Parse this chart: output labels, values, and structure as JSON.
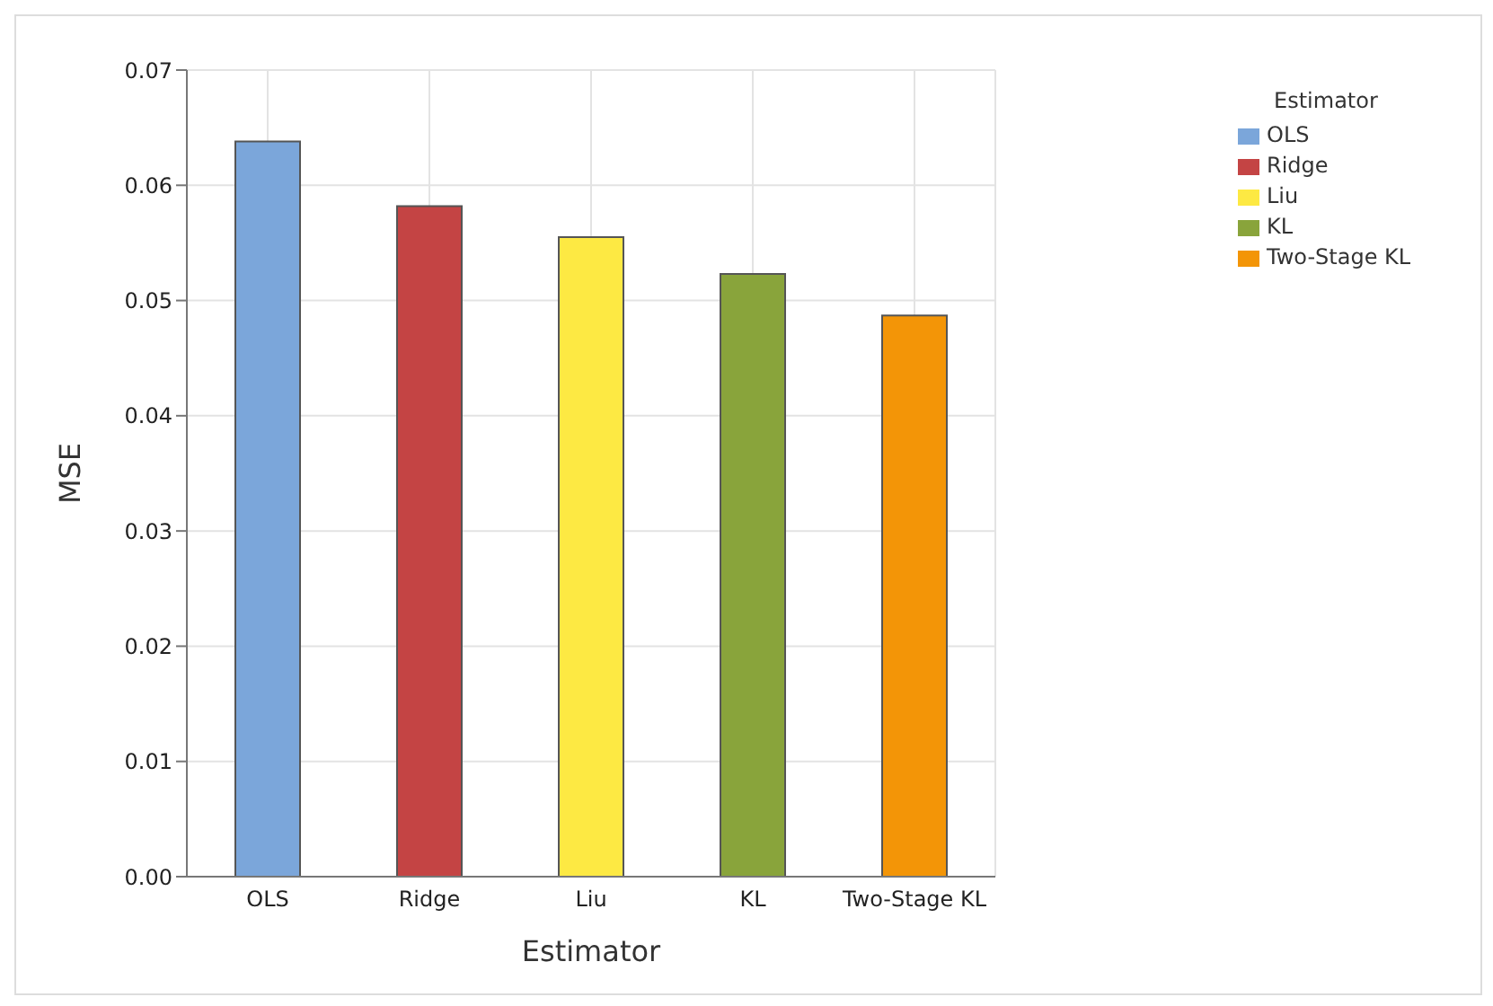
{
  "chart_data": {
    "type": "bar",
    "xlabel": "Estimator",
    "ylabel": "MSE",
    "legend_title": "Estimator",
    "categories": [
      "OLS",
      "Ridge",
      "Liu",
      "KL",
      "Two-Stage KL"
    ],
    "series": [
      {
        "name": "OLS",
        "color": "#7ba6da",
        "values": [
          0.0638,
          null,
          null,
          null,
          null
        ]
      },
      {
        "name": "Ridge",
        "color": "#c44444",
        "values": [
          null,
          0.0582,
          null,
          null,
          null
        ]
      },
      {
        "name": "Liu",
        "color": "#fde943",
        "values": [
          null,
          null,
          0.0555,
          null,
          null
        ]
      },
      {
        "name": "KL",
        "color": "#89a43b",
        "values": [
          null,
          null,
          null,
          0.0523,
          null
        ]
      },
      {
        "name": "Two-Stage KL",
        "color": "#f39507",
        "values": [
          null,
          null,
          null,
          null,
          0.0487
        ]
      }
    ],
    "ylim": [
      0,
      0.07
    ],
    "yticks": [
      {
        "value": 0,
        "label": "0.00"
      },
      0.01,
      0.02,
      0.03,
      0.04,
      0.05,
      0.06,
      0.07
    ],
    "grid": true,
    "legend": "top right"
  }
}
